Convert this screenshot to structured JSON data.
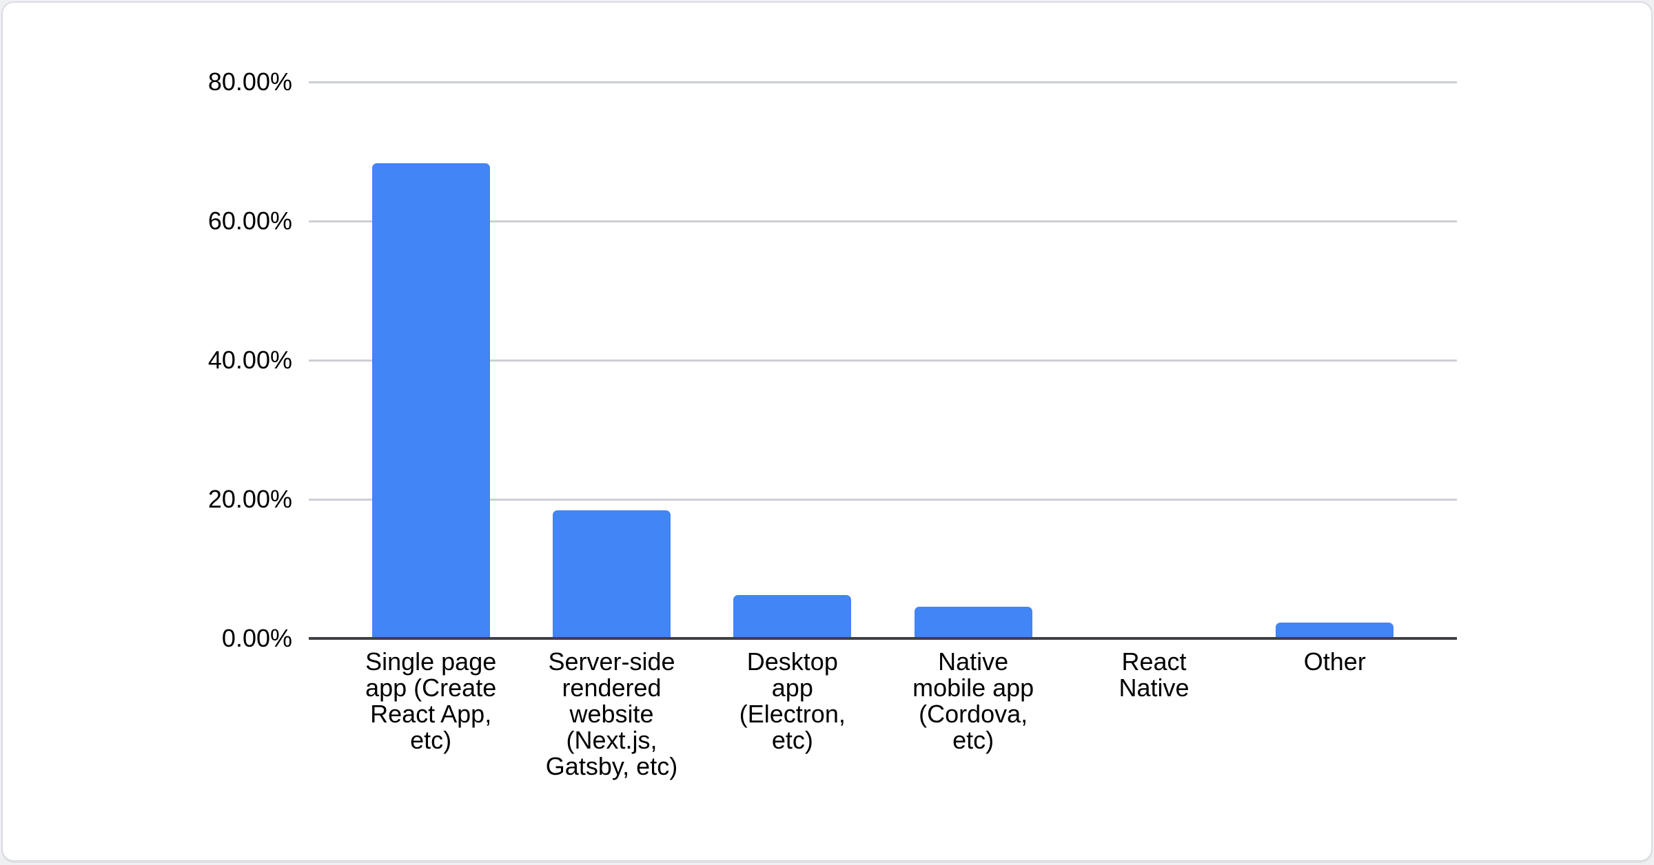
{
  "page": {
    "background": "#eef0f2"
  },
  "card": {
    "background": "#ffffff",
    "border_color": "#dadce0"
  },
  "chart_data": {
    "type": "bar",
    "title": "",
    "xlabel": "",
    "ylabel": "",
    "legend": "none",
    "grid": true,
    "ylim": [
      0,
      80
    ],
    "value_unit": "%",
    "categories": [
      "Single page app (Create React App, etc)",
      "Server-side rendered website (Next.js, Gatsby, etc)",
      "Desktop app (Electron, etc)",
      "Native mobile app (Cordova, etc)",
      "React Native",
      "Other"
    ],
    "category_lines": [
      [
        "Single page",
        "app (Create",
        "React App,",
        "etc)"
      ],
      [
        "Server-side",
        "rendered",
        "website",
        "(Next.js,",
        "Gatsby, etc)"
      ],
      [
        "Desktop",
        "app",
        "(Electron,",
        "etc)"
      ],
      [
        "Native",
        "mobile app",
        "(Cordova,",
        "etc)"
      ],
      [
        "React",
        "Native"
      ],
      [
        "Other"
      ]
    ],
    "values": [
      68.3,
      18.4,
      6.2,
      4.6,
      0,
      2.3
    ],
    "y_ticks": [
      {
        "value": 80,
        "label": "80.00%"
      },
      {
        "value": 60,
        "label": "60.00%"
      },
      {
        "value": 40,
        "label": "40.00%"
      },
      {
        "value": 20,
        "label": "20.00%"
      },
      {
        "value": 0,
        "label": "0.00%"
      }
    ],
    "colors": {
      "bar": "#4285f4",
      "gridline": "#cccfd3",
      "baseline": "#3e4043",
      "text": "#000000"
    }
  }
}
